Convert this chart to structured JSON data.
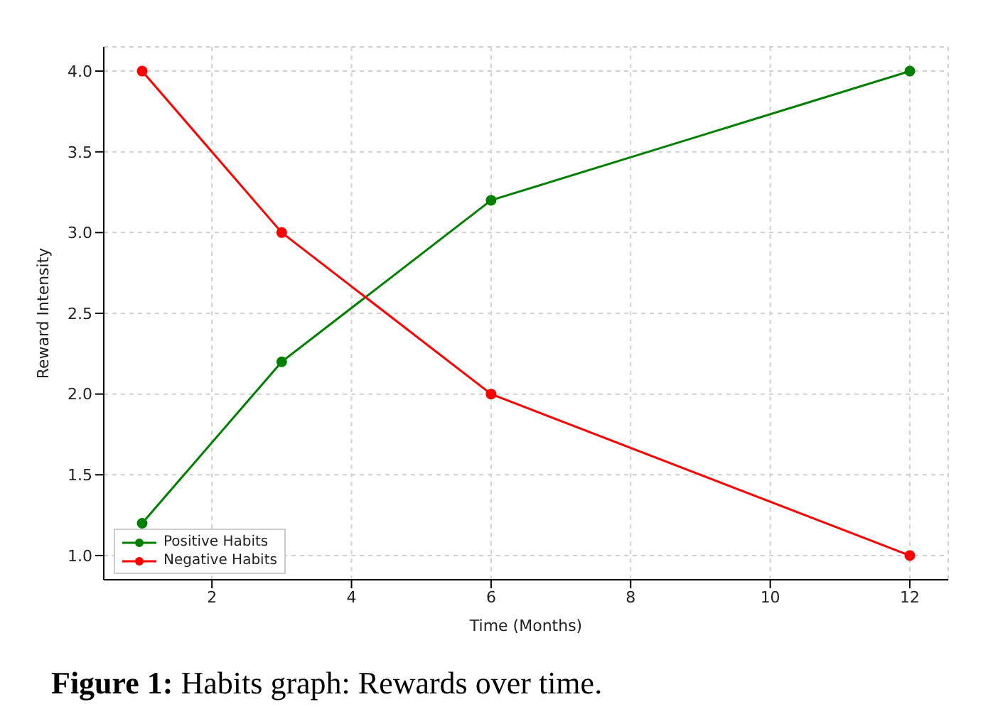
{
  "chart_data": {
    "type": "line",
    "xlabel": "Time (Months)",
    "ylabel": "Reward Intensity",
    "x": [
      1,
      3,
      6,
      12
    ],
    "series": [
      {
        "name": "Positive Habits",
        "color": "#008000",
        "values": [
          1.2,
          2.2,
          3.2,
          4.0
        ]
      },
      {
        "name": "Negative Habits",
        "color": "#ff0000",
        "values": [
          4.0,
          3.0,
          2.0,
          1.0
        ]
      }
    ],
    "xlim": [
      0.45,
      12.55
    ],
    "xticks": [
      2,
      4,
      6,
      8,
      10,
      12
    ],
    "ylim": [
      0.85,
      4.15
    ],
    "yticks": [
      {
        "value": 1,
        "label": "1.0"
      },
      {
        "value": 1.5,
        "label": "1.5"
      },
      {
        "value": 2,
        "label": "2.0"
      },
      {
        "value": 2.5,
        "label": "2.5"
      },
      {
        "value": 3,
        "label": "3.0"
      },
      {
        "value": 3.5,
        "label": "3.5"
      },
      {
        "value": 4,
        "label": "4.0"
      }
    ],
    "grid": true,
    "legend": "bottom left",
    "marker": "circle",
    "line_style": "solid",
    "annotations": [
      "Figure 1: Habits graph: Rewards over time."
    ]
  }
}
